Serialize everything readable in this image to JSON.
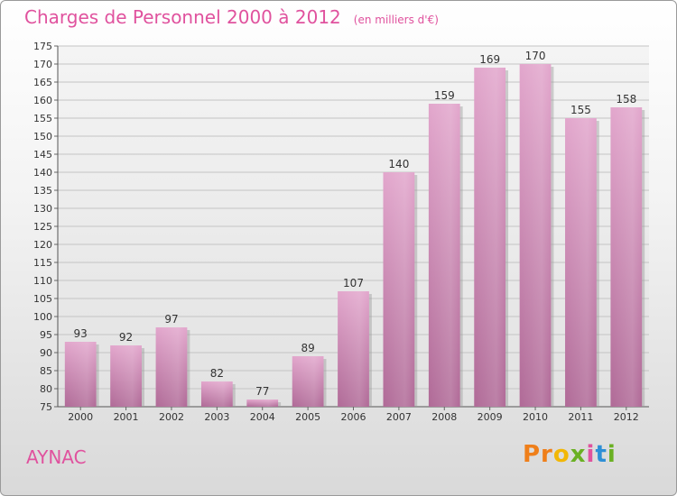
{
  "header": {
    "title": "Charges de Personnel 2000 à 2012",
    "subtitle": "(en milliers d'€)"
  },
  "footer": {
    "town": "AYNAC",
    "logo": [
      "Pr",
      "o",
      "x",
      "i",
      "t",
      "i"
    ]
  },
  "colors": {
    "bar": "#c97ab0",
    "title": "#e0529e"
  },
  "chart_data": {
    "type": "bar",
    "categories": [
      "2000",
      "2001",
      "2002",
      "2003",
      "2004",
      "2005",
      "2006",
      "2007",
      "2008",
      "2009",
      "2010",
      "2011",
      "2012"
    ],
    "values": [
      93,
      92,
      97,
      82,
      77,
      89,
      107,
      140,
      159,
      169,
      170,
      155,
      158
    ],
    "title": "Charges de Personnel 2000 à 2012",
    "ylim": [
      75,
      175
    ],
    "ytick_step": 5,
    "grid": true,
    "legend": "none"
  }
}
